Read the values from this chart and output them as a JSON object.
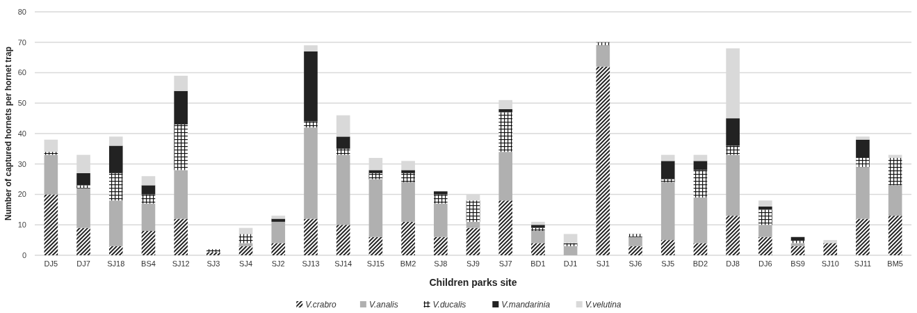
{
  "chart_data": {
    "type": "bar",
    "stacked": true,
    "xlabel": "Children parks site",
    "ylabel": "Number of captured hornets per hornet trap",
    "categories": [
      "DJ5",
      "DJ7",
      "SJ18",
      "BS4",
      "SJ12",
      "SJ3",
      "SJ4",
      "SJ2",
      "SJ13",
      "SJ14",
      "SJ15",
      "BM2",
      "SJ8",
      "SJ9",
      "SJ7",
      "BD1",
      "DJ1",
      "SJ1",
      "SJ6",
      "SJ5",
      "BD2",
      "DJ8",
      "DJ6",
      "BS9",
      "SJ10",
      "SJ11",
      "BM5"
    ],
    "series": [
      {
        "name": "V.crabro",
        "color": "#222222",
        "values": [
          20,
          9,
          3,
          8,
          12,
          1,
          3,
          4,
          12,
          10,
          6,
          11,
          6,
          9,
          18,
          4,
          0,
          62,
          3,
          5,
          4,
          13,
          6,
          3,
          4,
          12,
          13
        ]
      },
      {
        "name": "V.analis",
        "color": "#b0b0b0",
        "values": [
          13,
          13,
          15,
          9,
          16,
          0,
          1,
          7,
          30,
          23,
          19,
          13,
          11,
          2,
          16,
          4,
          3,
          7,
          3,
          19,
          15,
          20,
          4,
          1,
          0,
          17,
          10
        ]
      },
      {
        "name": "V.ducalis",
        "color": "#111111",
        "values": [
          1,
          1,
          9,
          3,
          15,
          1,
          3,
          0,
          2,
          2,
          2,
          3,
          3,
          7,
          13,
          1,
          1,
          1,
          1,
          1,
          9,
          3,
          5,
          1,
          0,
          3,
          9
        ]
      },
      {
        "name": "V.mandarinia",
        "color": "#222222",
        "values": [
          0,
          4,
          9,
          3,
          11,
          0,
          0,
          1,
          23,
          4,
          1,
          1,
          1,
          0,
          1,
          1,
          0,
          0,
          0,
          6,
          3,
          9,
          1,
          1,
          0,
          6,
          0
        ]
      },
      {
        "name": "V.velutina",
        "color": "#d9d9d9",
        "values": [
          4,
          6,
          3,
          3,
          5,
          0,
          2,
          1,
          2,
          7,
          4,
          3,
          0,
          2,
          3,
          1,
          3,
          0,
          0,
          2,
          2,
          23,
          2,
          0,
          1,
          1,
          1
        ]
      }
    ],
    "ylim": [
      0,
      80
    ],
    "yticks": [
      0,
      10,
      20,
      30,
      40,
      50,
      60,
      70,
      80
    ],
    "grid": "y",
    "legend": "bottom"
  }
}
